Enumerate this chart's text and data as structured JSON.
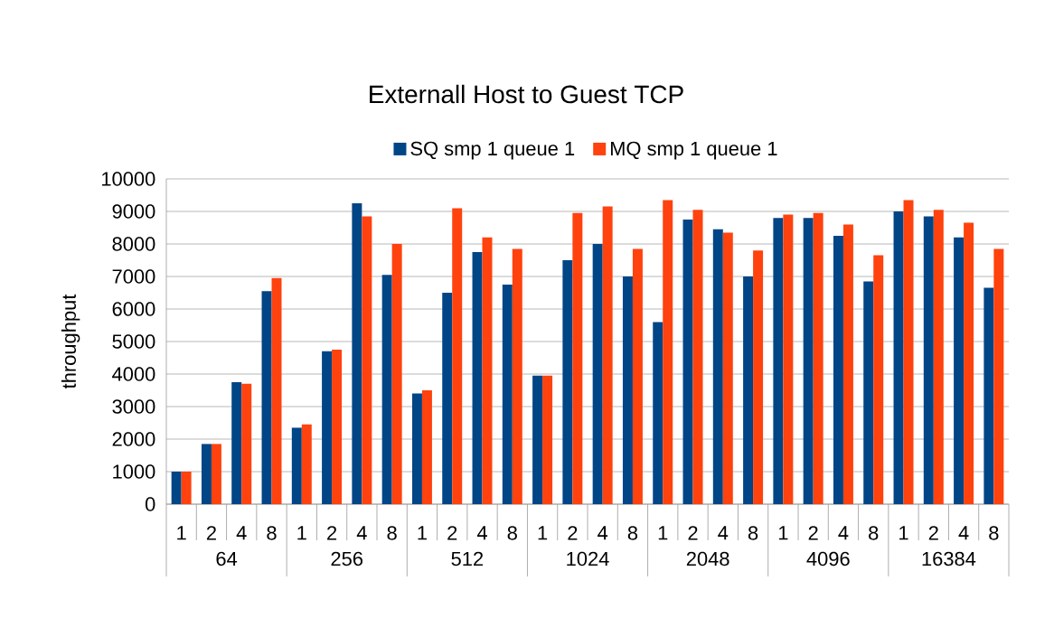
{
  "chart_data": {
    "type": "bar",
    "title": "Externall Host to Guest TCP",
    "ylabel": "throughput",
    "categories": [
      "1",
      "2",
      "4",
      "8",
      "1",
      "2",
      "4",
      "8",
      "1",
      "2",
      "4",
      "8",
      "1",
      "2",
      "4",
      "8",
      "1",
      "2",
      "4",
      "8",
      "1",
      "2",
      "4",
      "8",
      "1",
      "2",
      "4",
      "8"
    ],
    "annotations": [
      "64",
      "256",
      "512",
      "1024",
      "2048",
      "4096",
      "16384"
    ],
    "series": [
      {
        "name": "SQ smp 1 queue 1",
        "color": "#004586",
        "values": [
          1000,
          1850,
          3750,
          6550,
          2350,
          4700,
          9250,
          7050,
          3400,
          6500,
          7750,
          6750,
          3950,
          7500,
          8000,
          7000,
          5600,
          8750,
          8450,
          7000,
          8800,
          8800,
          8250,
          6850,
          9000,
          8850,
          8200,
          6650
        ]
      },
      {
        "name": "MQ smp 1 queue 1",
        "color": "#ff420e",
        "values": [
          1000,
          1850,
          3700,
          6950,
          2450,
          4750,
          8850,
          8000,
          3500,
          9100,
          8200,
          7850,
          3950,
          8950,
          9150,
          7850,
          9350,
          9050,
          8350,
          7800,
          8900,
          8950,
          8600,
          7650,
          9350,
          9050,
          8650,
          7850
        ]
      }
    ],
    "ylim": [
      0,
      10000
    ],
    "yticks": [
      0,
      1000,
      2000,
      3000,
      4000,
      5000,
      6000,
      7000,
      8000,
      9000,
      10000
    ],
    "grid": "y",
    "legend": "top"
  }
}
